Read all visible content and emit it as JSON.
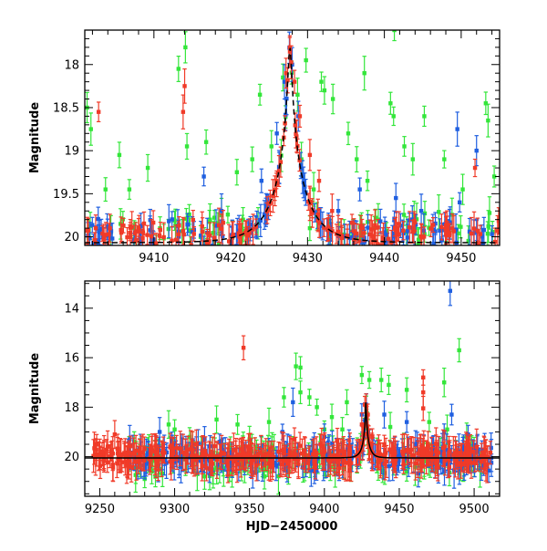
{
  "chart_data": [
    {
      "type": "scatter",
      "title": "",
      "xlabel": "",
      "ylabel": "Magnitude",
      "xlim": [
        9401,
        9455
      ],
      "ylim": [
        20.1,
        17.6
      ],
      "x_ticks": [
        9410,
        9420,
        9430,
        9440,
        9450
      ],
      "x_tick_labels": [
        "9410",
        "9420",
        "9430",
        "9440",
        "9450"
      ],
      "y_ticks": [
        18,
        18.5,
        19,
        19.5,
        20
      ],
      "y_tick_labels": [
        "18",
        "18.5",
        "19",
        "19.5",
        "20"
      ],
      "model_curve": {
        "name": "model",
        "t0": 9427.7,
        "peak": 17.8,
        "base": 20.07,
        "u0": 0.05,
        "tE": 4.2
      },
      "series": [
        {
          "name": "blue",
          "color": "#1f5fe0",
          "points": [
            [
              9416.5,
              19.3
            ],
            [
              9418.8,
              19.7
            ],
            [
              9424,
              19.35
            ],
            [
              9426,
              18.8
            ],
            [
              9427,
              18.2
            ],
            [
              9428,
              18.0
            ],
            [
              9428.8,
              18.6
            ],
            [
              9449.5,
              18.75
            ],
            [
              9452,
              19.0
            ],
            [
              9441.5,
              19.55
            ],
            [
              9436.8,
              19.45
            ],
            [
              9434,
              19.7
            ],
            [
              9444.8,
              19.7
            ],
            [
              9449.8,
              19.6
            ]
          ],
          "band": [
            9401,
            9455,
            19.95,
            0.16,
            140
          ]
        },
        {
          "name": "red",
          "color": "#f03a28",
          "points": [
            [
              9402.8,
              18.55
            ],
            [
              9413.8,
              18.55
            ],
            [
              9414,
              18.25
            ],
            [
              9451.8,
              19.2
            ],
            [
              9427.2,
              18.1
            ],
            [
              9427.7,
              17.85
            ],
            [
              9428.3,
              18.2
            ],
            [
              9429,
              18.6
            ],
            [
              9430.3,
              19.05
            ],
            [
              9431.5,
              19.35
            ],
            [
              9433.2,
              19.7
            ]
          ],
          "band": [
            9401,
            9455,
            19.95,
            0.16,
            170
          ]
        },
        {
          "name": "green",
          "color": "#33e63a",
          "points": [
            [
              9401.3,
              18.5
            ],
            [
              9401.8,
              18.75
            ],
            [
              9403.7,
              19.45
            ],
            [
              9405.5,
              19.05
            ],
            [
              9406.8,
              19.45
            ],
            [
              9409.2,
              19.2
            ],
            [
              9410.8,
              19.9
            ],
            [
              9413.2,
              18.05
            ],
            [
              9414.1,
              17.8
            ],
            [
              9414.3,
              18.95
            ],
            [
              9416.8,
              18.9
            ],
            [
              9417.3,
              19.8
            ],
            [
              9418.8,
              19.75
            ],
            [
              9420.8,
              19.25
            ],
            [
              9421.6,
              19.8
            ],
            [
              9422.8,
              19.1
            ],
            [
              9425.3,
              18.95
            ],
            [
              9426.8,
              18.15
            ],
            [
              9428.7,
              18.35
            ],
            [
              9429.2,
              19.1
            ],
            [
              9430.8,
              19.45
            ],
            [
              9431.8,
              18.2
            ],
            [
              9432.2,
              18.3
            ],
            [
              9433.3,
              18.4
            ],
            [
              9435.3,
              18.8
            ],
            [
              9436.4,
              19.1
            ],
            [
              9437.8,
              19.35
            ],
            [
              9439.2,
              19.8
            ],
            [
              9440.8,
              18.45
            ],
            [
              9441.2,
              18.6
            ],
            [
              9442.6,
              18.95
            ],
            [
              9443.7,
              19.1
            ],
            [
              9445.2,
              18.6
            ],
            [
              9447.8,
              19.1
            ],
            [
              9450.2,
              19.45
            ],
            [
              9453.2,
              18.45
            ],
            [
              9453.5,
              18.65
            ],
            [
              9454.3,
              19.3
            ],
            [
              9437.4,
              18.1
            ],
            [
              9429.8,
              17.95
            ],
            [
              9441.3,
              17.6
            ],
            [
              9430.3,
              19.9
            ],
            [
              9423.8,
              18.35
            ]
          ],
          "band": [
            9401,
            9455,
            19.9,
            0.22,
            70
          ]
        }
      ]
    },
    {
      "type": "scatter",
      "title": "",
      "xlabel": "HJD−2450000",
      "ylabel": "Magnitude",
      "xlim": [
        9240,
        9517
      ],
      "ylim": [
        21.6,
        12.9
      ],
      "x_ticks": [
        9250,
        9300,
        9350,
        9400,
        9450,
        9500
      ],
      "x_tick_labels": [
        "9250",
        "9300",
        "9350",
        "9400",
        "9450",
        "9500"
      ],
      "y_ticks": [
        14,
        16,
        18,
        20
      ],
      "y_tick_labels": [
        "14",
        "16",
        "18",
        "20"
      ],
      "model_curve": {
        "name": "model",
        "t0": 9427.7,
        "peak": 17.8,
        "base": 20.05,
        "u0": 0.05,
        "tE": 4.2
      },
      "series": [
        {
          "name": "blue",
          "color": "#1f5fe0",
          "points": [
            [
              9484,
              13.3
            ],
            [
              9379,
              17.8
            ],
            [
              9372,
              19.0
            ],
            [
              9440,
              18.3
            ],
            [
              9455,
              18.6
            ],
            [
              9480,
              19.0
            ],
            [
              9270,
              19.3
            ],
            [
              9290,
              19.0
            ],
            [
              9320,
              19.3
            ],
            [
              9400,
              19.2
            ],
            [
              9330,
              19.4
            ],
            [
              9425,
              18.3
            ],
            [
              9428,
              17.9
            ],
            [
              9485,
              18.3
            ],
            [
              9496,
              19.1
            ],
            [
              9462,
              19.4
            ]
          ],
          "band": [
            9268,
            9512,
            20.05,
            0.55,
            220
          ]
        },
        {
          "name": "red",
          "color": "#f03a28",
          "points": [
            [
              9346,
              15.6
            ],
            [
              9466,
              16.8
            ],
            [
              9466,
              17.4
            ],
            [
              9466,
              18.05
            ],
            [
              9427,
              17.9
            ],
            [
              9429,
              18.3
            ],
            [
              9425,
              18.7
            ],
            [
              9432,
              19.2
            ],
            [
              9260,
              19.1
            ],
            [
              9380,
              19.3
            ],
            [
              9440,
              19.5
            ]
          ],
          "band": [
            9245,
            9512,
            20.0,
            0.45,
            380
          ]
        },
        {
          "name": "green",
          "color": "#33e63a",
          "points": [
            [
              9381,
              16.35
            ],
            [
              9384,
              16.4
            ],
            [
              9490,
              15.7
            ],
            [
              9438,
              16.9
            ],
            [
              9425,
              16.7
            ],
            [
              9430,
              16.9
            ],
            [
              9443,
              17.1
            ],
            [
              9480,
              17.0
            ],
            [
              9455,
              17.3
            ],
            [
              9415,
              17.8
            ],
            [
              9395,
              18.0
            ],
            [
              9384,
              17.4
            ],
            [
              9373,
              17.6
            ],
            [
              9390,
              17.6
            ],
            [
              9328,
              18.5
            ],
            [
              9300,
              18.9
            ],
            [
              9273,
              19.4
            ],
            [
              9296,
              18.7
            ],
            [
              9342,
              18.7
            ],
            [
              9363,
              18.6
            ],
            [
              9405,
              18.4
            ],
            [
              9412,
              18.9
            ],
            [
              9444,
              18.8
            ],
            [
              9470,
              18.6
            ],
            [
              9482,
              18.9
            ],
            [
              9495,
              19.2
            ],
            [
              9500,
              19.6
            ],
            [
              9400,
              18.9
            ],
            [
              9350,
              19.3
            ],
            [
              9310,
              19.2
            ],
            [
              9280,
              20.9
            ],
            [
              9320,
              20.8
            ],
            [
              9360,
              20.8
            ],
            [
              9290,
              20.5
            ],
            [
              9435,
              20.2
            ],
            [
              9455,
              20.6
            ]
          ],
          "band": [
            9268,
            9505,
            20.1,
            0.6,
            160
          ]
        }
      ]
    }
  ]
}
